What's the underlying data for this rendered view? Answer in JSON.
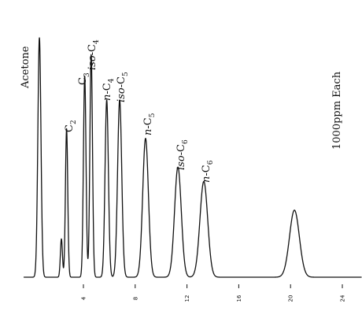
{
  "chart_data": {
    "type": "line",
    "title": "",
    "xlabel": "",
    "ylabel": "",
    "annotation": "1000ppm Each",
    "x_ticks": [
      "4",
      "8",
      "12",
      "16",
      "20",
      "24"
    ],
    "x_tick_values": [
      4,
      8,
      12,
      16,
      20,
      24
    ],
    "xlim": [
      -0.5,
      25.5
    ],
    "ylim": [
      0,
      100
    ],
    "grid": false,
    "series": [
      {
        "peaks": [
          {
            "label": "Acetone",
            "x": 0.6,
            "height": 100,
            "width": 0.12
          },
          {
            "label": "",
            "x": 2.3,
            "height": 16,
            "width": 0.08
          },
          {
            "label": "C2",
            "x": 2.7,
            "height": 62,
            "width": 0.09
          },
          {
            "label": "C3",
            "x": 4.1,
            "height": 84,
            "width": 0.1
          },
          {
            "label": "iso-C4",
            "x": 4.6,
            "height": 93,
            "width": 0.1
          },
          {
            "label": "n-C4",
            "x": 5.8,
            "height": 74,
            "width": 0.13
          },
          {
            "label": "iso-C5",
            "x": 6.8,
            "height": 74,
            "width": 0.16
          },
          {
            "label": "n-C5",
            "x": 8.8,
            "height": 58,
            "width": 0.22
          },
          {
            "label": "iso-C6",
            "x": 11.3,
            "height": 46,
            "width": 0.26
          },
          {
            "label": "n-C6",
            "x": 13.3,
            "height": 40,
            "width": 0.3
          },
          {
            "label": "",
            "x": 20.3,
            "height": 28,
            "width": 0.38
          }
        ]
      }
    ]
  },
  "peak_labels": {
    "acetone": "Acetone",
    "c2": {
      "base": "C",
      "sub": "2"
    },
    "c3": {
      "base": "C",
      "sub": "3"
    },
    "iso_c4": {
      "prefix": "iso",
      "base": "-C",
      "sub": "4"
    },
    "n_c4": {
      "prefix": "n",
      "base": "-C",
      "sub": "4"
    },
    "iso_c5": {
      "prefix": "iso",
      "base": "-C",
      "sub": "5"
    },
    "n_c5": {
      "prefix": "n",
      "base": "-C",
      "sub": "5"
    },
    "iso_c6": {
      "prefix": "iso",
      "base": "-C",
      "sub": "6"
    },
    "n_c6": {
      "prefix": "n",
      "base": "-C",
      "sub": "6"
    }
  }
}
